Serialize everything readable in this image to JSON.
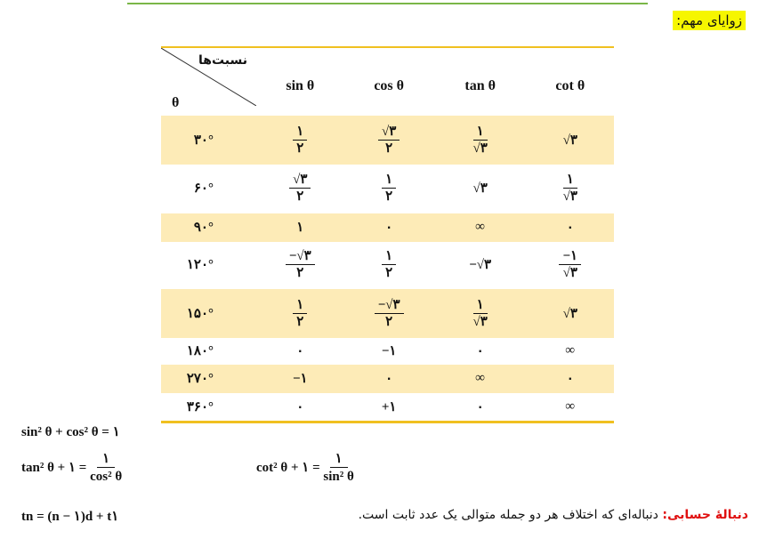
{
  "heading": "زوایای مهم:",
  "table": {
    "corner_top": "نسبت‌ها",
    "corner_bottom": "θ",
    "columns": [
      "sin θ",
      "cos θ",
      "tan θ",
      "cot θ"
    ],
    "shade_color": "#fdebb7",
    "rows": [
      {
        "angle": "۳۰°",
        "shaded": true,
        "cells": [
          {
            "n": "۱",
            "d": "۲"
          },
          {
            "n": "√۳",
            "d": "۲"
          },
          {
            "n": "۱",
            "d": "√۳"
          },
          "√۳"
        ]
      },
      {
        "angle": "۶۰°",
        "shaded": false,
        "cells": [
          {
            "n": "√۳",
            "d": "۲"
          },
          {
            "n": "۱",
            "d": "۲"
          },
          "√۳",
          {
            "n": "۱",
            "d": "√۳"
          }
        ]
      },
      {
        "angle": "۹۰°",
        "shaded": true,
        "cells": [
          "۱",
          "۰",
          "∞",
          "۰"
        ]
      },
      {
        "angle": "۱۲۰°",
        "shaded": false,
        "cells": [
          {
            "n": "−√۳",
            "d": "۲"
          },
          {
            "n": "۱",
            "d": "۲"
          },
          "−√۳",
          {
            "n": "−۱",
            "d": "√۳"
          }
        ]
      },
      {
        "angle": "۱۵۰°",
        "shaded": true,
        "cells": [
          {
            "n": "۱",
            "d": "۲"
          },
          {
            "n": "−√۳",
            "d": "۲"
          },
          {
            "n": "۱",
            "d": "√۳"
          },
          "√۳"
        ]
      },
      {
        "angle": "۱۸۰°",
        "shaded": false,
        "cells": [
          "۰",
          "−۱",
          "۰",
          "∞"
        ]
      },
      {
        "angle": "۲۷۰°",
        "shaded": true,
        "cells": [
          "−۱",
          "۰",
          "∞",
          "۰"
        ]
      },
      {
        "angle": "۳۶۰°",
        "shaded": false,
        "cells": [
          "۰",
          "+۱",
          "۰",
          "∞"
        ]
      }
    ]
  },
  "formulas": {
    "pythagorean": "sin² θ + cos² θ = ۱",
    "tan_lhs": "tan² θ + ۱ =",
    "tan_num": "۱",
    "tan_den": "cos² θ",
    "cot_lhs": "cot² θ + ۱ =",
    "cot_num": "۱",
    "cot_den": "sin² θ",
    "sequence": "tn = (n − ۱)d + t۱"
  },
  "sequence_def": {
    "title": "دنبالهٔ حسابی:",
    "text": " دنباله‌ای که اختلاف هر دو جمله متوالی یک عدد ثابت است."
  }
}
